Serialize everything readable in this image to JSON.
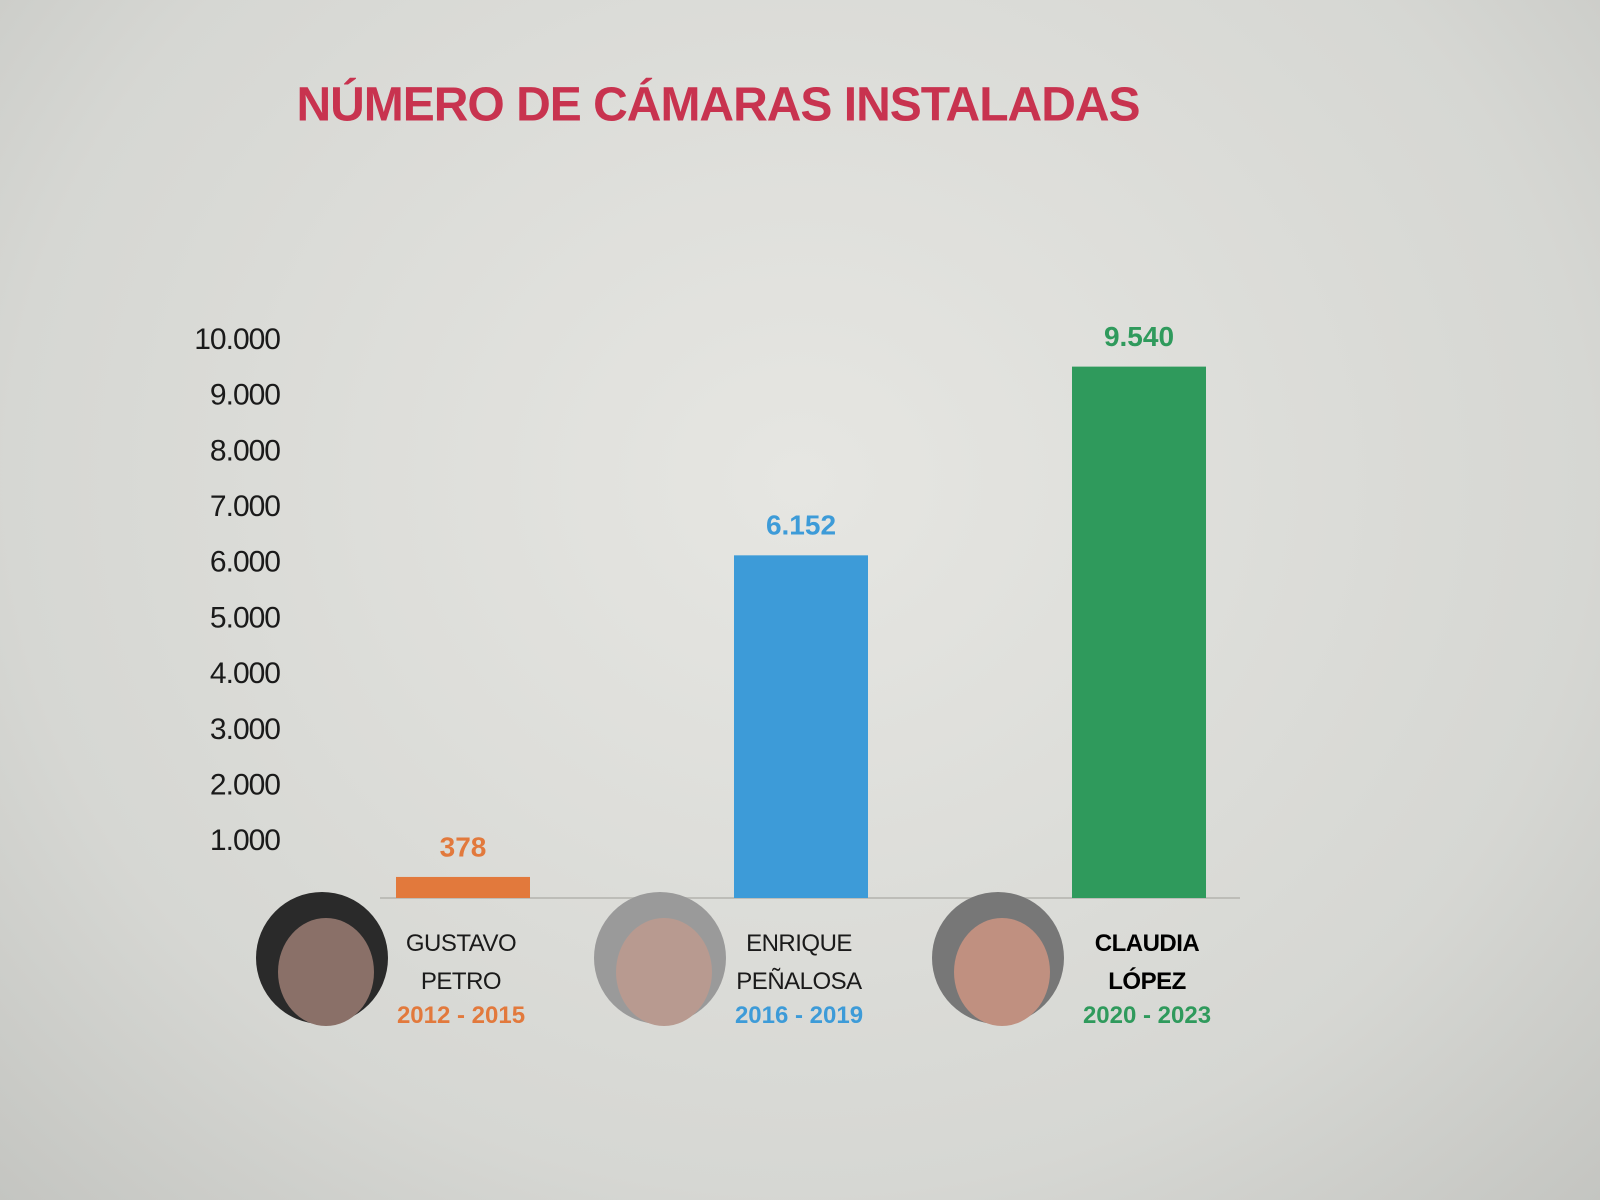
{
  "chart_data": {
    "type": "bar",
    "title": "NÚMERO DE CÁMARAS INSTALADAS",
    "categories": [
      "GUSTAVO PETRO",
      "ENRIQUE PEÑALOSA",
      "CLAUDIA LÓPEZ"
    ],
    "periods": [
      "2012 - 2015",
      "2016 - 2019",
      "2020 - 2023"
    ],
    "values": [
      378,
      6152,
      9540
    ],
    "value_labels": [
      "378",
      "6.152",
      "9.540"
    ],
    "colors": [
      "#e2793c",
      "#3d9bd8",
      "#2f9a5c"
    ],
    "ylim": [
      0,
      10000
    ],
    "yticks": [
      {
        "value": 1000,
        "label": "1.000"
      },
      {
        "value": 2000,
        "label": "2.000"
      },
      {
        "value": 3000,
        "label": "3.000"
      },
      {
        "value": 4000,
        "label": "4.000"
      },
      {
        "value": 5000,
        "label": "5.000"
      },
      {
        "value": 6000,
        "label": "6.000"
      },
      {
        "value": 7000,
        "label": "7.000"
      },
      {
        "value": 8000,
        "label": "8.000"
      },
      {
        "value": 9000,
        "label": "9.000"
      },
      {
        "value": 10000,
        "label": "10.000"
      }
    ],
    "grid": false
  }
}
